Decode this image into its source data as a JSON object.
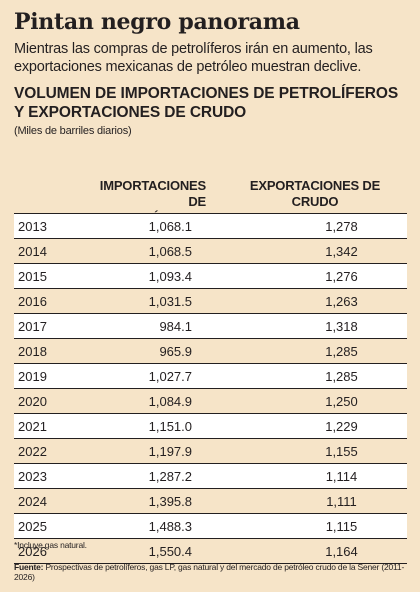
{
  "header": {
    "headline": "Pintan negro panorama",
    "deck": "Mientras las compras de petrolíferos irán en aumento, las exportaciones mexicanas de petróleo muestran declive.",
    "title_line1": "VOLUMEN DE IMPORTACIONES DE PETROLÍFEROS",
    "title_line2": "Y EXPORTACIONES DE CRUDO",
    "units": "(Miles de barriles diarios)"
  },
  "columns": {
    "imports_line1": "IMPORTACIONES",
    "imports_line2": "DE PETROLÍFEROS*",
    "exports": "EXPORTACIONES DE CRUDO"
  },
  "footer": {
    "note": "*Incluye gas natural.",
    "source_label": "Fuente:",
    "source_text": " Prospectivas de petrolíferos, gas LP, gas natural y del mercado de petróleo crudo de la Sener (2011-2026)"
  },
  "colors": {
    "background": "#f6e4c8",
    "row_alt": "#ffffff",
    "text": "#231f20"
  },
  "chart_data": {
    "type": "table",
    "title": "VOLUMEN DE IMPORTACIONES DE PETROLÍFEROS Y EXPORTACIONES DE CRUDO",
    "subtitle": "(Miles de barriles diarios)",
    "columns": [
      "IMPORTACIONES DE PETROLÍFEROS*",
      "EXPORTACIONES DE CRUDO"
    ],
    "rows": [
      {
        "year": "2013",
        "imports": "1,068.1",
        "exports": "1,278"
      },
      {
        "year": "2014",
        "imports": "1,068.5",
        "exports": "1,342"
      },
      {
        "year": "2015",
        "imports": "1,093.4",
        "exports": "1,276"
      },
      {
        "year": "2016",
        "imports": "1,031.5",
        "exports": "1,263"
      },
      {
        "year": "2017",
        "imports": "984.1",
        "exports": "1,318"
      },
      {
        "year": "2018",
        "imports": "965.9",
        "exports": "1,285"
      },
      {
        "year": "2019",
        "imports": "1,027.7",
        "exports": "1,285"
      },
      {
        "year": "2020",
        "imports": "1,084.9",
        "exports": "1,250"
      },
      {
        "year": "2021",
        "imports": "1,151.0",
        "exports": "1,229"
      },
      {
        "year": "2022",
        "imports": "1,197.9",
        "exports": "1,155"
      },
      {
        "year": "2023",
        "imports": "1,287.2",
        "exports": "1,114"
      },
      {
        "year": "2024",
        "imports": "1,395.8",
        "exports": "1,111"
      },
      {
        "year": "2025",
        "imports": "1,488.3",
        "exports": "1,115"
      },
      {
        "year": "2026",
        "imports": "1,550.4",
        "exports": "1,164"
      }
    ]
  }
}
